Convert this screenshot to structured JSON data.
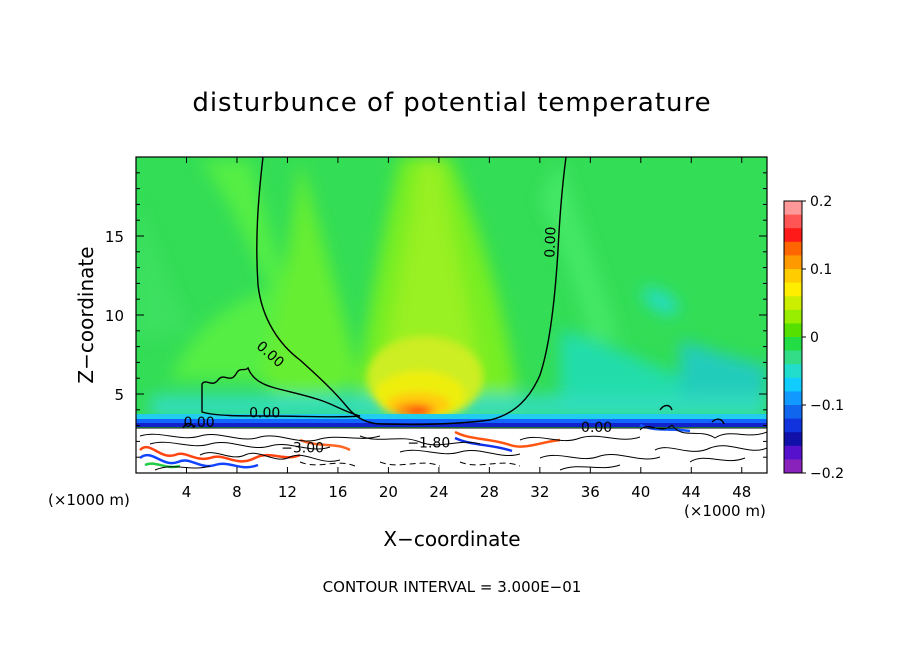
{
  "chart_data": {
    "type": "heatmap",
    "title": "disturbunce of potential temperature",
    "xlabel": "X−coordinate",
    "ylabel": "Z−coordinate",
    "x_unit_left": "(×1000 m)",
    "x_unit_right": "(×1000 m)",
    "xlim": [
      0,
      50
    ],
    "ylim": [
      0,
      20
    ],
    "xticks": [
      4,
      8,
      12,
      16,
      20,
      24,
      28,
      32,
      36,
      40,
      44,
      48
    ],
    "xtick_labels": [
      "4",
      "8",
      "12",
      "16",
      "20",
      "24",
      "28",
      "32",
      "36",
      "40",
      "44",
      "48"
    ],
    "yticks": [
      5,
      10,
      15
    ],
    "ytick_labels": [
      "5",
      "10",
      "15"
    ],
    "colorbar": {
      "range": [
        -0.2,
        0.2
      ],
      "ticks": [
        0.2,
        0.1,
        0,
        -0.1,
        -0.2
      ],
      "tick_labels": [
        "0.2",
        "0.1",
        "0",
        "−0.1",
        "−0.2"
      ]
    },
    "contour_labels": [
      {
        "text": "0.00",
        "x": 10.4,
        "y": 7.3
      },
      {
        "text": "0.00",
        "x": 10.2,
        "y": 3.5
      },
      {
        "text": "0.00",
        "x": 5.0,
        "y": 2.9
      },
      {
        "text": "0.00",
        "x": 33.2,
        "y": 14.6
      },
      {
        "text": "0.00",
        "x": 36.5,
        "y": 2.6
      },
      {
        "text": "−1.80",
        "x": 23.2,
        "y": 1.6
      },
      {
        "text": "−3.00",
        "x": 13.2,
        "y": 1.3
      }
    ],
    "field_features": [
      {
        "desc": "warm plume maximum",
        "x": 22.5,
        "y": 3.8,
        "value": 0.12
      },
      {
        "desc": "near-surface cold layer",
        "z_top": 3.0,
        "value": -0.2
      }
    ],
    "note": "CONTOUR INTERVAL = 3.000E−01"
  }
}
